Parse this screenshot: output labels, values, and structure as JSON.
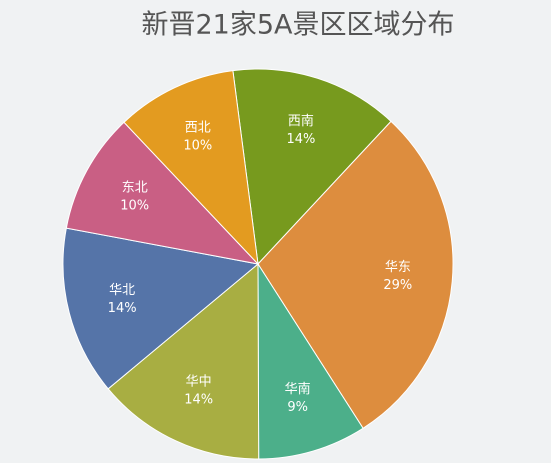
{
  "chart_data": {
    "type": "pie",
    "title": "新晋21家5A景区区域分布",
    "categories": [
      "西南",
      "华东",
      "华南",
      "华中",
      "华北",
      "东北",
      "西北"
    ],
    "values": [
      14,
      29,
      9,
      14,
      14,
      10,
      10
    ],
    "value_labels": [
      "14%",
      "29%",
      "9%",
      "14%",
      "14%",
      "10%",
      "10%"
    ],
    "colors": [
      "#779a1e",
      "#dd8d3e",
      "#4caf8a",
      "#a8ae42",
      "#5574a8",
      "#c95f84",
      "#e39b20"
    ]
  }
}
